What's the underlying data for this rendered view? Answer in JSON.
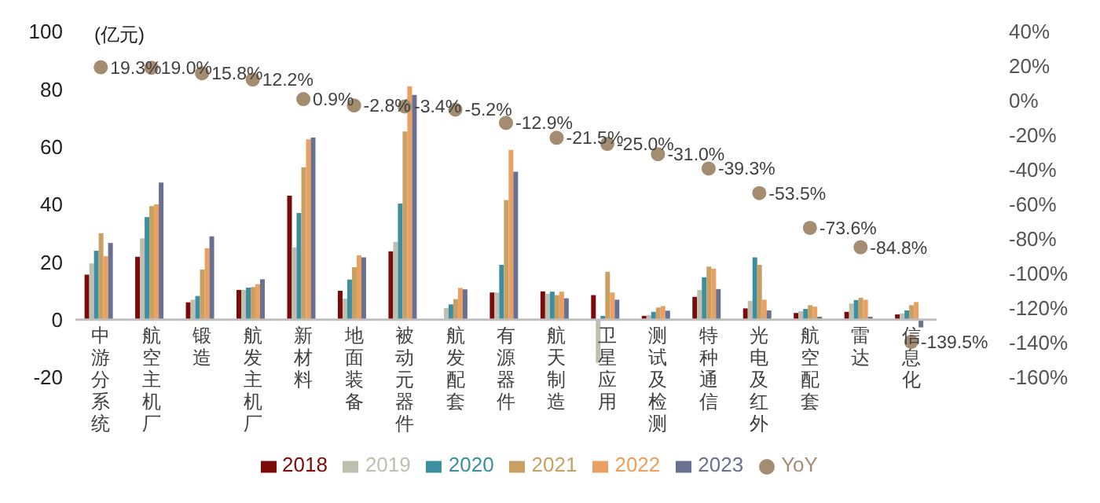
{
  "chart_data": {
    "type": "bar",
    "ylabel": "(亿元)",
    "categories": [
      "中游分系统",
      "航空主机厂",
      "锻造",
      "航发主机厂",
      "新材料",
      "地面装备",
      "被动元器件",
      "航发配套",
      "有源器件",
      "航天制造",
      "卫星应用",
      "测试及检测",
      "特种通信",
      "光电及红外",
      "航空配套",
      "雷达",
      "信息化"
    ],
    "series": [
      {
        "name": "2018",
        "color": "#7b0a0a",
        "values": [
          15.6,
          21.8,
          6,
          10.3,
          43,
          10,
          23.7,
          null,
          9.4,
          9.8,
          8.5,
          1.3,
          7.9,
          3.9,
          2.3,
          2.7,
          1.8
        ]
      },
      {
        "name": "2019",
        "color": "#bfbfb0",
        "values": [
          19.5,
          28.2,
          6.9,
          10.3,
          25,
          7.3,
          27,
          4,
          9.4,
          9,
          -15,
          1.6,
          10.3,
          6.5,
          2.9,
          5.6,
          2.1
        ]
      },
      {
        "name": "2020",
        "color": "#3c8ea0",
        "values": [
          23.9,
          35.6,
          8.2,
          11.1,
          37,
          13.9,
          40.3,
          5.3,
          19,
          9.7,
          1.3,
          2.7,
          14.7,
          21.6,
          3.7,
          6.8,
          3.2
        ]
      },
      {
        "name": "2021",
        "color": "#c9a063",
        "values": [
          30,
          39.4,
          17.4,
          11.3,
          52.9,
          18.2,
          65.3,
          7.1,
          41.5,
          8.5,
          16.6,
          4.2,
          18.4,
          19,
          5,
          7.6,
          5
        ]
      },
      {
        "name": "2022",
        "color": "#e9a060",
        "values": [
          22,
          40,
          24.8,
          12.3,
          62.6,
          22.3,
          81,
          11,
          58.9,
          9.7,
          9.4,
          4.7,
          17.7,
          6.9,
          4.5,
          6.9,
          6.1
        ]
      },
      {
        "name": "2023",
        "color": "#6a7090",
        "values": [
          26.6,
          47.6,
          28.9,
          14,
          63.2,
          21.6,
          78,
          10.5,
          51.3,
          7.4,
          6.9,
          3.1,
          10.6,
          3.2,
          1,
          1,
          -2.7
        ]
      },
      {
        "name": "YoY",
        "type": "scatter",
        "axis": "y2",
        "color": "#a38c70",
        "values": [
          19.3,
          19.0,
          15.8,
          12.2,
          0.9,
          -2.8,
          -3.4,
          -5.2,
          -12.9,
          -21.5,
          -25.0,
          -31.0,
          -39.3,
          -53.5,
          -73.6,
          -84.8,
          -139.5
        ],
        "value_labels": [
          "19.3%",
          "19.0%",
          "15.8%",
          "12.2%",
          "0.9%",
          "-2.8%",
          "-3.4%",
          "-5.2%",
          "-12.9%",
          "-21.5%",
          "-25.0%",
          "-31.0%",
          "-39.3%",
          "-53.5%",
          "-73.6%",
          "-84.8%",
          "-139.5%"
        ]
      }
    ],
    "ylim": [
      -20,
      100
    ],
    "yticks": [
      -20,
      0,
      20,
      40,
      60,
      80,
      100
    ],
    "y2lim": [
      -160,
      40
    ],
    "y2ticks": [
      {
        "value": -160,
        "label": "-160%"
      },
      {
        "value": -140,
        "label": "-140%"
      },
      {
        "value": -120,
        "label": "-120%"
      },
      {
        "value": -100,
        "label": "-100%"
      },
      {
        "value": -80,
        "label": "-80%"
      },
      {
        "value": -60,
        "label": "-60%"
      },
      {
        "value": -40,
        "label": "-40%"
      },
      {
        "value": -20,
        "label": "-20%"
      },
      {
        "value": 0,
        "label": "0%"
      },
      {
        "value": 20,
        "label": "20%"
      },
      {
        "value": 40,
        "label": "40%"
      }
    ],
    "marker": "circle",
    "grid": false,
    "legend": "bottom"
  }
}
